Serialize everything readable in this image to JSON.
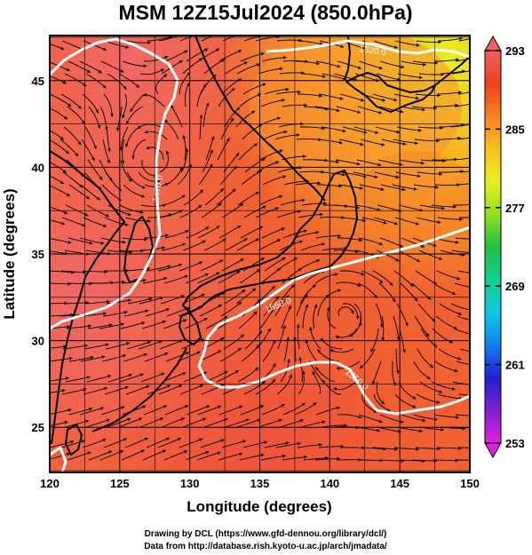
{
  "title": "MSM 12Z15Jul2024 (850.0hPa)",
  "xaxis": {
    "label": "Longitude (degrees)",
    "ticks": [
      120,
      125,
      130,
      135,
      140,
      145,
      150
    ],
    "range": [
      120,
      150
    ]
  },
  "yaxis": {
    "label": "Latitude  (degrees)",
    "ticks": [
      25,
      30,
      35,
      40,
      45
    ],
    "range": [
      22.4,
      47.6
    ]
  },
  "colorbar": {
    "ticks": [
      253,
      261,
      269,
      277,
      285,
      293
    ],
    "range": [
      253,
      293
    ],
    "colors": [
      "#e020e0",
      "#8020d0",
      "#2020d0",
      "#1080f0",
      "#10c8e0",
      "#10d090",
      "#20c040",
      "#90e020",
      "#e8f020",
      "#f8c020",
      "#f88020",
      "#f04020",
      "#f06060"
    ]
  },
  "contours": [
    {
      "label": "1520.0"
    },
    {
      "label": "1470.0"
    },
    {
      "label": "1550.0"
    },
    {
      "label": "1550.0"
    }
  ],
  "credits": {
    "line1": "Drawing by DCL (https://www.gfd-dennou.org/library/dcl/)",
    "line2": "Data from http://database.rish.kyoto-u.ac.jp/arch/jmadata/"
  }
}
